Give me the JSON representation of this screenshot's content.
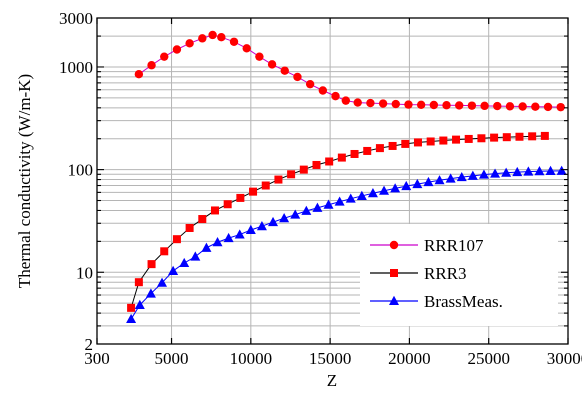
{
  "chart_data": {
    "type": "line",
    "title": "",
    "xlabel": "Z",
    "ylabel": "Thermal conductivity (W/m-K)",
    "xlim": [
      300,
      30000
    ],
    "ylim": [
      2,
      3000
    ],
    "yscale": "log",
    "grid": true,
    "legend_position": "bottom-right",
    "x_ticks": [
      {
        "value": 300,
        "label": "300"
      },
      {
        "value": 5000,
        "label": "5000"
      },
      {
        "value": 10000,
        "label": "10000"
      },
      {
        "value": 15000,
        "label": "15000"
      },
      {
        "value": 20000,
        "label": "20000"
      },
      {
        "value": 25000,
        "label": "25000"
      },
      {
        "value": 30000,
        "label": "30000"
      }
    ],
    "y_ticks": [
      {
        "value": 2,
        "label": "2"
      },
      {
        "value": 10,
        "label": "10"
      },
      {
        "value": 100,
        "label": "100"
      },
      {
        "value": 1000,
        "label": "1000"
      },
      {
        "value": 3000,
        "label": "3000"
      }
    ],
    "series": [
      {
        "name": "RRR107",
        "color": "#ff0000",
        "line_color": "#cc00cc",
        "marker": "circle",
        "x": [
          2940,
          3740,
          4540,
          5340,
          6140,
          6940,
          7590,
          8140,
          8940,
          9740,
          10540,
          11340,
          12140,
          12940,
          13740,
          14540,
          15340,
          15990,
          16740,
          17540,
          18340,
          19140,
          19940,
          20740,
          21540,
          22340,
          23140,
          23940,
          24740,
          25540,
          26340,
          27140,
          27940,
          28740,
          29540
        ],
        "y": [
          850,
          1040,
          1260,
          1480,
          1700,
          1900,
          2050,
          1950,
          1760,
          1520,
          1260,
          1060,
          920,
          800,
          680,
          590,
          520,
          470,
          450,
          445,
          440,
          435,
          430,
          428,
          426,
          424,
          422,
          420,
          418,
          416,
          414,
          412,
          410,
          408,
          406
        ]
      },
      {
        "name": "RRR3",
        "color": "#ff0000",
        "line_color": "#000000",
        "marker": "square",
        "x": [
          2450,
          2940,
          3740,
          4540,
          5340,
          6140,
          6940,
          7740,
          8540,
          9340,
          10140,
          10940,
          11740,
          12540,
          13340,
          14140,
          14940,
          15740,
          16540,
          17340,
          18140,
          18940,
          19740,
          20540,
          21340,
          22140,
          22940,
          23740,
          24540,
          25340,
          26140,
          26940,
          27740,
          28540
        ],
        "y": [
          4.5,
          8,
          12,
          16,
          21,
          27,
          33,
          40,
          46,
          53,
          61,
          70,
          80,
          90,
          100,
          111,
          120,
          131,
          142,
          152,
          162,
          170,
          178,
          184,
          188,
          192,
          196,
          199,
          202,
          205,
          207,
          209,
          211,
          213
        ]
      },
      {
        "name": "BrassMeas.",
        "color": "#0000ff",
        "line_color": "#0000ff",
        "marker": "triangle",
        "x": [
          2450,
          3000,
          3700,
          4400,
          5100,
          5800,
          6500,
          7200,
          7900,
          8600,
          9300,
          10000,
          10700,
          11400,
          12100,
          12800,
          13500,
          14200,
          14900,
          15600,
          16300,
          17000,
          17700,
          18400,
          19100,
          19800,
          20500,
          21200,
          21900,
          22600,
          23300,
          24000,
          24700,
          25400,
          26100,
          26800,
          27500,
          28200,
          28900,
          29600
        ],
        "y": [
          3.5,
          4.8,
          6.2,
          7.9,
          10.3,
          12.3,
          14.2,
          17.3,
          19.6,
          21.5,
          23.3,
          25.8,
          28.1,
          30.8,
          33.6,
          36.4,
          39.6,
          42.4,
          45.5,
          48.7,
          52.1,
          55.4,
          58.9,
          62.2,
          65.6,
          69.1,
          72.2,
          75.6,
          78.7,
          81.7,
          84.4,
          86.9,
          89.3,
          91.3,
          93.1,
          94.6,
          95.7,
          96.5,
          97.0,
          97.3
        ]
      }
    ]
  }
}
